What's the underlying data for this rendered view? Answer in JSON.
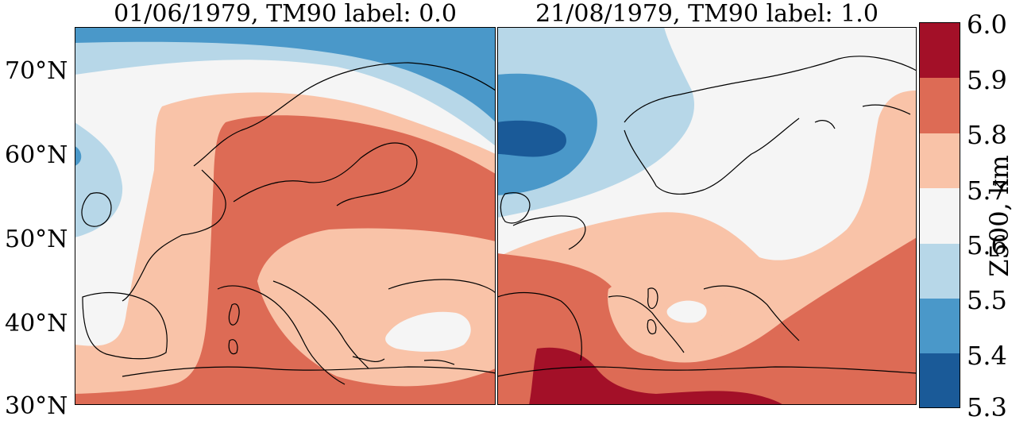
{
  "panels": [
    {
      "title": "01/06/1979, TM90 label: 0.0"
    },
    {
      "title": "21/08/1979, TM90 label: 1.0"
    }
  ],
  "lat_labels": [
    "70°N",
    "60°N",
    "50°N",
    "40°N",
    "30°N"
  ],
  "colorbar": {
    "label": "Z500, km",
    "ticks": [
      "6.0",
      "5.9",
      "5.8",
      "5.7",
      "5.6",
      "5.5",
      "5.4",
      "5.3"
    ],
    "colors": [
      "#1a5a98",
      "#4a98c9",
      "#b7d7e8",
      "#f5f5f5",
      "#f9c3a8",
      "#dd6b55",
      "#a31028"
    ]
  }
}
